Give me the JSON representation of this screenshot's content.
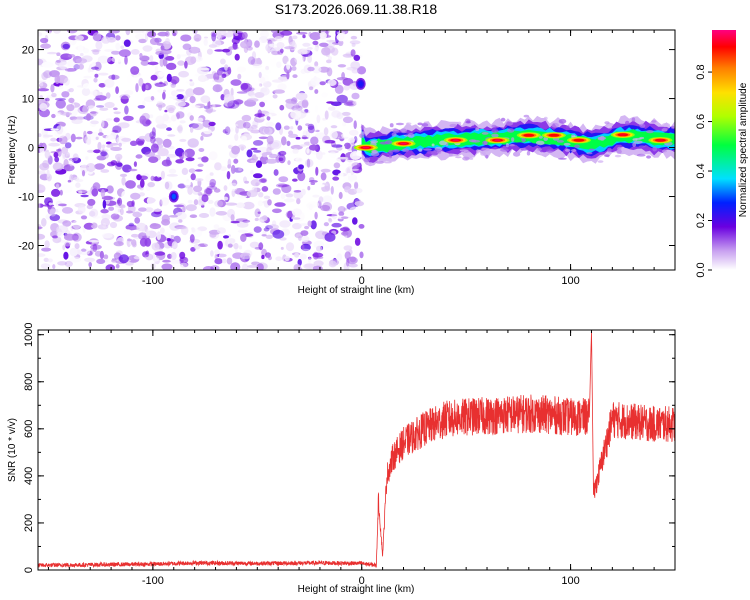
{
  "title": "S173.2026.069.11.38.R18",
  "chart_data": [
    {
      "type": "heatmap",
      "title": "S173.2026.069.11.38.R18",
      "xlabel": "Height of straight line (km)",
      "ylabel": "Frequency (Hz)",
      "xlim": [
        -155,
        150
      ],
      "ylim": [
        -25,
        24
      ],
      "xticks": [
        -100,
        0,
        100
      ],
      "yticks": [
        -20,
        -10,
        0,
        10,
        20
      ],
      "colorbar": {
        "label": "Normalized spectral amplitude",
        "range": [
          0,
          0.97
        ],
        "ticks": [
          0.0,
          0.2,
          0.4,
          0.6,
          0.8
        ],
        "colors": [
          "#ffffff",
          "#c8a0f0",
          "#6a00e0",
          "#0020ff",
          "#00e0ff",
          "#00ff40",
          "#b0ff00",
          "#ffe000",
          "#ff8000",
          "#ff0000",
          "#ff0080"
        ]
      },
      "noise_region": {
        "x": [
          -155,
          0
        ],
        "y": [
          -25,
          24
        ],
        "amplitude": [
          0.0,
          0.2
        ],
        "color": "#9a50f0"
      },
      "signal_band": {
        "x": [
          0,
          150
        ],
        "center_frequency": [
          {
            "x": 2,
            "y": 0
          },
          {
            "x": 20,
            "y": 1
          },
          {
            "x": 40,
            "y": 1.5
          },
          {
            "x": 60,
            "y": 1.8
          },
          {
            "x": 80,
            "y": 2.5
          },
          {
            "x": 100,
            "y": 1.5
          },
          {
            "x": 110,
            "y": 0.5
          },
          {
            "x": 125,
            "y": 2.5
          },
          {
            "x": 150,
            "y": 1.5
          }
        ],
        "peak_amplitude": 0.95
      },
      "hotspots": [
        {
          "x": 2,
          "y": 0,
          "amplitude": 0.95
        },
        {
          "x": 20,
          "y": 0.8,
          "amplitude": 0.95
        },
        {
          "x": 45,
          "y": 1.5,
          "amplitude": 0.95
        },
        {
          "x": 65,
          "y": 1.5,
          "amplitude": 0.95
        },
        {
          "x": 80,
          "y": 2.5,
          "amplitude": 0.9
        },
        {
          "x": 92,
          "y": 2.5,
          "amplitude": 0.9
        },
        {
          "x": 104,
          "y": 1.5,
          "amplitude": 0.9
        },
        {
          "x": 125,
          "y": 2.6,
          "amplitude": 0.92
        },
        {
          "x": 143,
          "y": 1.5,
          "amplitude": 0.92
        },
        {
          "x": -90,
          "y": -10,
          "amplitude": 0.3
        },
        {
          "x": -0.5,
          "y": 13,
          "amplitude": 0.25
        }
      ]
    },
    {
      "type": "line",
      "title": "",
      "xlabel": "Height of straight line (km)",
      "ylabel": "SNR (10 * v/v)",
      "xlim": [
        -155,
        150
      ],
      "ylim": [
        0,
        1020
      ],
      "xticks": [
        -100,
        0,
        100
      ],
      "yticks": [
        0,
        200,
        400,
        600,
        800,
        1000
      ],
      "color": "#e83030",
      "series": [
        {
          "name": "SNR",
          "x": [
            -155,
            -100,
            -80,
            -50,
            -20,
            0,
            7,
            8,
            10,
            12,
            15,
            20,
            30,
            40,
            50,
            60,
            70,
            80,
            90,
            100,
            109,
            110,
            111,
            120,
            130,
            140,
            150
          ],
          "y": [
            20,
            25,
            30,
            28,
            30,
            28,
            20,
            300,
            60,
            400,
            480,
            540,
            600,
            640,
            650,
            655,
            660,
            665,
            660,
            650,
            650,
            1020,
            320,
            640,
            630,
            620,
            620
          ]
        }
      ]
    }
  ]
}
